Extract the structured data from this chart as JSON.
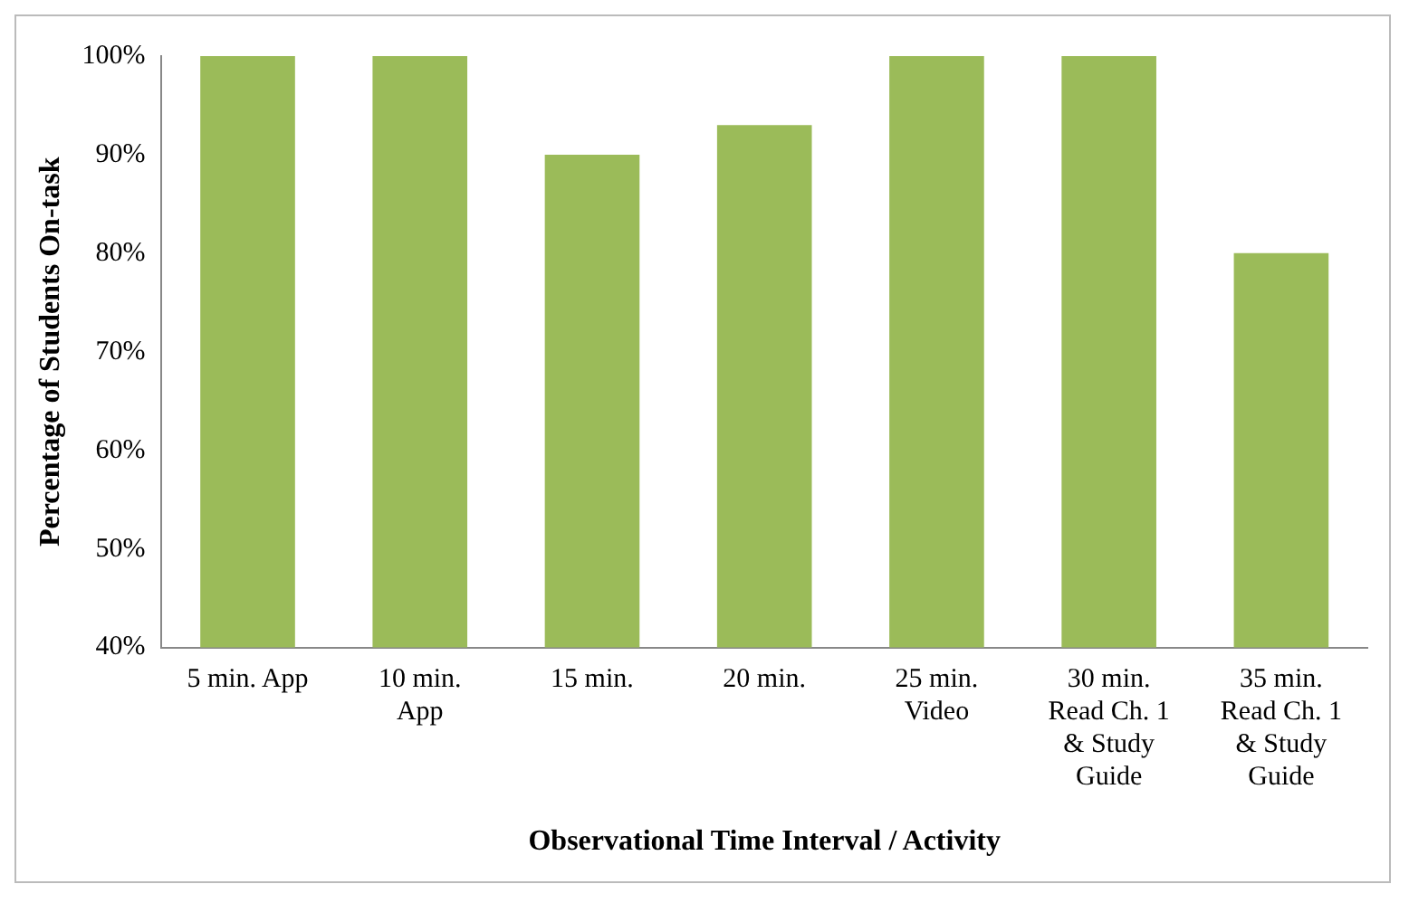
{
  "chart_data": {
    "type": "bar",
    "xlabel": "Observational Time Interval / Activity",
    "ylabel": "Percentage of Students On-task",
    "categories": [
      "5 min. App",
      "10 min. App",
      "15 min.",
      "20 min.",
      "25 min. Video",
      "30 min. Read Ch. 1 & Study Guide",
      "35 min. Read Ch. 1 & Study Guide"
    ],
    "values": [
      100,
      100,
      90,
      93,
      100,
      100,
      80
    ],
    "color": "#9bbb59",
    "ylim": [
      40,
      100
    ],
    "yticks": [
      {
        "value": 40,
        "label": "40%"
      },
      {
        "value": 50,
        "label": "50%"
      },
      {
        "value": 60,
        "label": "60%"
      },
      {
        "value": 70,
        "label": "70%"
      },
      {
        "value": 80,
        "label": "80%"
      },
      {
        "value": 90,
        "label": "90%"
      },
      {
        "value": 100,
        "label": "100%"
      }
    ],
    "grid": false,
    "legend": false
  }
}
